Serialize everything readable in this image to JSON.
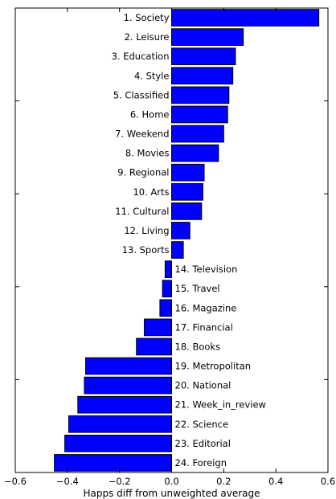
{
  "chart_data": {
    "type": "bar",
    "orientation": "horizontal",
    "title": "",
    "xlabel": "Happs diff from unweighted average",
    "ylabel": "",
    "xlim": [
      -0.6,
      0.6
    ],
    "x_ticks": [
      -0.6,
      -0.4,
      -0.2,
      0.0,
      0.2,
      0.4,
      0.6
    ],
    "x_tick_labels": [
      "−0.6",
      "−0.4",
      "−0.2",
      "0.0",
      "0.2",
      "0.4",
      "0.6"
    ],
    "grid": false,
    "bar_color": "#0000ff",
    "categories": [
      "1. Society",
      "2. Leisure",
      "3. Education",
      "4. Style",
      "5. Classified",
      "6. Home",
      "7. Weekend",
      "8. Movies",
      "9. Regional",
      "10. Arts",
      "11. Cultural",
      "12. Living",
      "13. Sports",
      "14. Television",
      "15. Travel",
      "16. Magazine",
      "17. Financial",
      "18. Books",
      "19. Metropolitan",
      "20. National",
      "21. Week_in_review",
      "22. Science",
      "23. Editorial",
      "24. Foreign"
    ],
    "values": [
      0.565,
      0.275,
      0.245,
      0.235,
      0.22,
      0.215,
      0.2,
      0.18,
      0.125,
      0.12,
      0.115,
      0.07,
      0.045,
      -0.025,
      -0.035,
      -0.045,
      -0.105,
      -0.135,
      -0.33,
      -0.335,
      -0.36,
      -0.395,
      -0.41,
      -0.45
    ]
  }
}
